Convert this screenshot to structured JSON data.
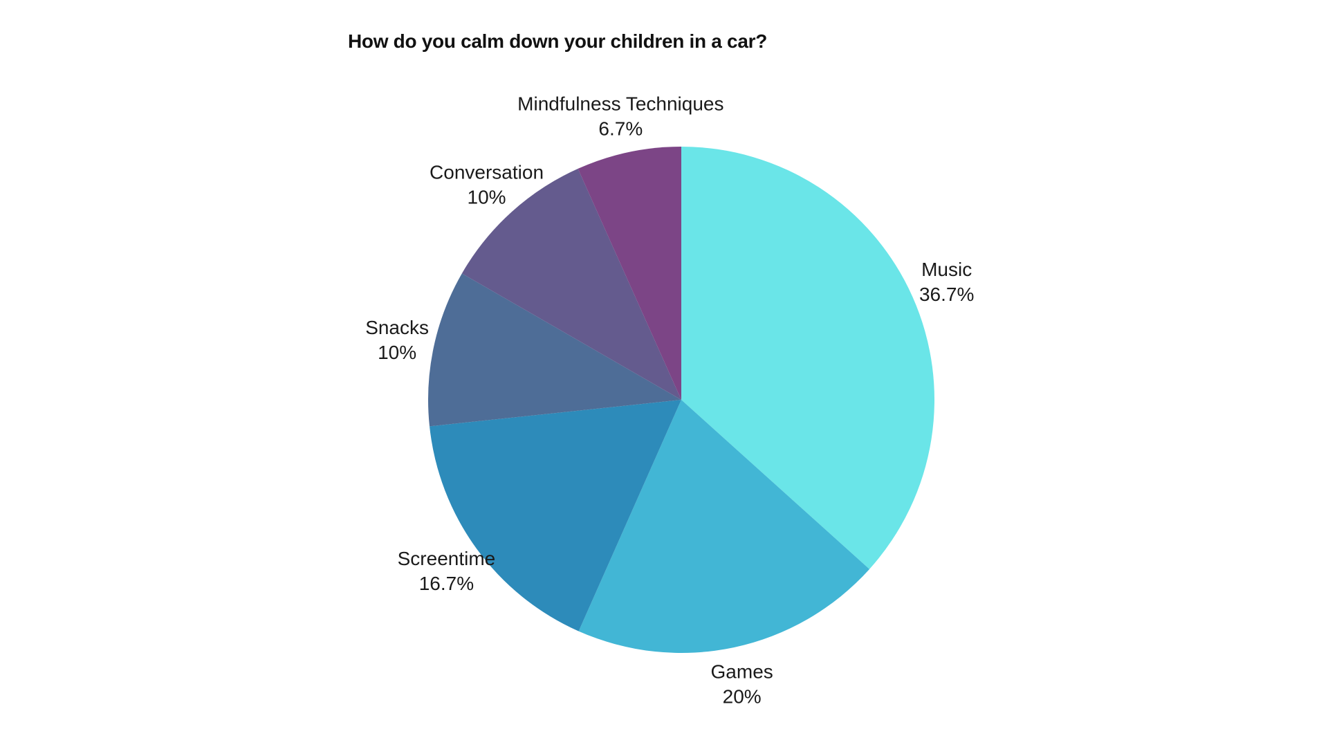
{
  "chart_data": {
    "type": "pie",
    "title": "How do you calm down your children in a car?",
    "slices": [
      {
        "label": "Music",
        "value": 36.7,
        "value_text": "36.7%",
        "color": "#6ae5e8"
      },
      {
        "label": "Games",
        "value": 20,
        "value_text": "20%",
        "color": "#42b6d5"
      },
      {
        "label": "Screentime",
        "value": 16.7,
        "value_text": "16.7%",
        "color": "#2d8bba"
      },
      {
        "label": "Snacks",
        "value": 10,
        "value_text": "10%",
        "color": "#4e6d97"
      },
      {
        "label": "Conversation",
        "value": 10,
        "value_text": "10%",
        "color": "#645b8e"
      },
      {
        "label": "Mindfulness Techniques",
        "value": 6.7,
        "value_text": "6.7%",
        "color": "#7c4586"
      }
    ],
    "start": "12 o'clock",
    "direction": "clockwise",
    "legend": "none (direct labels)"
  }
}
